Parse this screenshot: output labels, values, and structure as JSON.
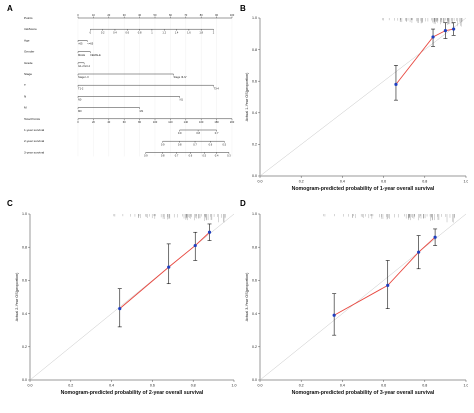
{
  "panel_labels": [
    "A",
    "B",
    "C",
    "D"
  ],
  "chart_data": [
    {
      "panel": "A",
      "type": "nomogram",
      "rows": [
        {
          "label": "Points",
          "ticks": [
            "0",
            "10",
            "20",
            "30",
            "40",
            "50",
            "60",
            "70",
            "80",
            "90",
            "100"
          ],
          "t": [
            0,
            0.1,
            0.2,
            0.3,
            0.4,
            0.5,
            0.6,
            0.7,
            0.8,
            0.9,
            1.0
          ],
          "kind": "scale"
        },
        {
          "label": "riskScore",
          "ticks": [
            "0",
            "0.2",
            "0.4",
            "0.6",
            "0.8",
            "1",
            "1.2",
            "1.4",
            "1.6",
            "1.8",
            "2"
          ],
          "t": [
            0.08,
            0.16,
            0.24,
            0.32,
            0.4,
            0.48,
            0.56,
            0.64,
            0.72,
            0.8,
            0.88
          ],
          "kind": "scale"
        },
        {
          "label": "Age",
          "ticks": [
            ">65",
            "<=65"
          ],
          "t": [
            0.0,
            0.06
          ],
          "kind": "cat"
        },
        {
          "label": "Gender",
          "ticks": [
            "MALE",
            "FEMALE"
          ],
          "t": [
            0.0,
            0.08
          ],
          "kind": "cat"
        },
        {
          "label": "Grade",
          "ticks": [
            "G1-2",
            "G3-4"
          ],
          "t": [
            0.0,
            0.04
          ],
          "kind": "cat"
        },
        {
          "label": "Stage",
          "ticks": [
            "Stage I-II",
            "Stage III-IV"
          ],
          "t": [
            0.0,
            0.62
          ],
          "kind": "cat"
        },
        {
          "label": "T",
          "ticks": [
            "T1-2",
            "T3-4"
          ],
          "t": [
            0.0,
            0.88
          ],
          "kind": "cat"
        },
        {
          "label": "N",
          "ticks": [
            "N0",
            "N1"
          ],
          "t": [
            0.0,
            0.66
          ],
          "kind": "cat"
        },
        {
          "label": "M",
          "ticks": [
            "M0",
            "M1"
          ],
          "t": [
            0.0,
            0.4
          ],
          "kind": "cat"
        },
        {
          "label": "Total Points",
          "ticks": [
            "0",
            "20",
            "40",
            "60",
            "80",
            "100",
            "120",
            "140",
            "160",
            "180",
            "200"
          ],
          "t": [
            0,
            0.1,
            0.2,
            0.3,
            0.4,
            0.5,
            0.6,
            0.7,
            0.8,
            0.9,
            1.0
          ],
          "kind": "scale"
        },
        {
          "label": "1-year survival",
          "ticks": [
            "0.9",
            "0.8",
            "0.7"
          ],
          "t": [
            0.66,
            0.78,
            0.9
          ],
          "kind": "scale"
        },
        {
          "label": "2-year survival",
          "ticks": [
            "0.9",
            "0.8",
            "0.7",
            "0.6",
            "0.5"
          ],
          "t": [
            0.55,
            0.66,
            0.76,
            0.86,
            0.95
          ],
          "kind": "scale"
        },
        {
          "label": "3-year survival",
          "ticks": [
            "0.9",
            "0.8",
            "0.7",
            "0.6",
            "0.5",
            "0.4",
            "0.3"
          ],
          "t": [
            0.44,
            0.55,
            0.64,
            0.73,
            0.82,
            0.9,
            0.98
          ],
          "kind": "scale"
        }
      ]
    },
    {
      "panel": "B",
      "type": "scatter",
      "xlabel": "Nomogram-predicted probability of 1-year overall survival",
      "ylabel": "Actual 1-Year OS(proportion)",
      "xlim": [
        0.0,
        1.0
      ],
      "ylim": [
        0.0,
        1.0
      ],
      "xticks": [
        0.0,
        0.2,
        0.4,
        0.6,
        0.8,
        1.0
      ],
      "yticks": [
        0.0,
        0.2,
        0.4,
        0.6,
        0.8,
        1.0
      ],
      "points": [
        {
          "x": 0.66,
          "y": 0.58,
          "lo": 0.48,
          "hi": 0.7
        },
        {
          "x": 0.84,
          "y": 0.88,
          "lo": 0.82,
          "hi": 0.93
        },
        {
          "x": 0.9,
          "y": 0.92,
          "lo": 0.87,
          "hi": 0.97
        },
        {
          "x": 0.94,
          "y": 0.93,
          "lo": 0.89,
          "hi": 0.97
        }
      ],
      "rug_range": [
        0.56,
        0.99
      ]
    },
    {
      "panel": "C",
      "type": "scatter",
      "xlabel": "Nomogram-predicted probability of 2-year overall survival",
      "ylabel": "Actual 2-Year OS(proportion)",
      "xlim": [
        0.0,
        1.0
      ],
      "ylim": [
        0.0,
        1.0
      ],
      "xticks": [
        0.0,
        0.2,
        0.4,
        0.6,
        0.8,
        1.0
      ],
      "yticks": [
        0.0,
        0.2,
        0.4,
        0.6,
        0.8,
        1.0
      ],
      "points": [
        {
          "x": 0.44,
          "y": 0.43,
          "lo": 0.32,
          "hi": 0.55
        },
        {
          "x": 0.68,
          "y": 0.68,
          "lo": 0.58,
          "hi": 0.82
        },
        {
          "x": 0.81,
          "y": 0.81,
          "lo": 0.72,
          "hi": 0.89
        },
        {
          "x": 0.88,
          "y": 0.89,
          "lo": 0.84,
          "hi": 0.94
        }
      ],
      "rug_range": [
        0.36,
        0.97
      ]
    },
    {
      "panel": "D",
      "type": "scatter",
      "xlabel": "Nomogram-predicted probability of 3-year overall survival",
      "ylabel": "Actual 3-Year OS(proportion)",
      "xlim": [
        0.0,
        1.0
      ],
      "ylim": [
        0.0,
        1.0
      ],
      "xticks": [
        0.0,
        0.2,
        0.4,
        0.6,
        0.8,
        1.0
      ],
      "yticks": [
        0.0,
        0.2,
        0.4,
        0.6,
        0.8,
        1.0
      ],
      "points": [
        {
          "x": 0.36,
          "y": 0.39,
          "lo": 0.27,
          "hi": 0.52
        },
        {
          "x": 0.62,
          "y": 0.57,
          "lo": 0.43,
          "hi": 0.72
        },
        {
          "x": 0.77,
          "y": 0.77,
          "lo": 0.67,
          "hi": 0.87
        },
        {
          "x": 0.85,
          "y": 0.86,
          "lo": 0.81,
          "hi": 0.91
        }
      ],
      "rug_range": [
        0.25,
        0.96
      ]
    }
  ],
  "colors": {
    "calibration_line": "#e8473f",
    "point": "#1f3fbf",
    "error_bar": "#111111",
    "diagonal": "#bdbdbd",
    "axis": "#333333"
  }
}
